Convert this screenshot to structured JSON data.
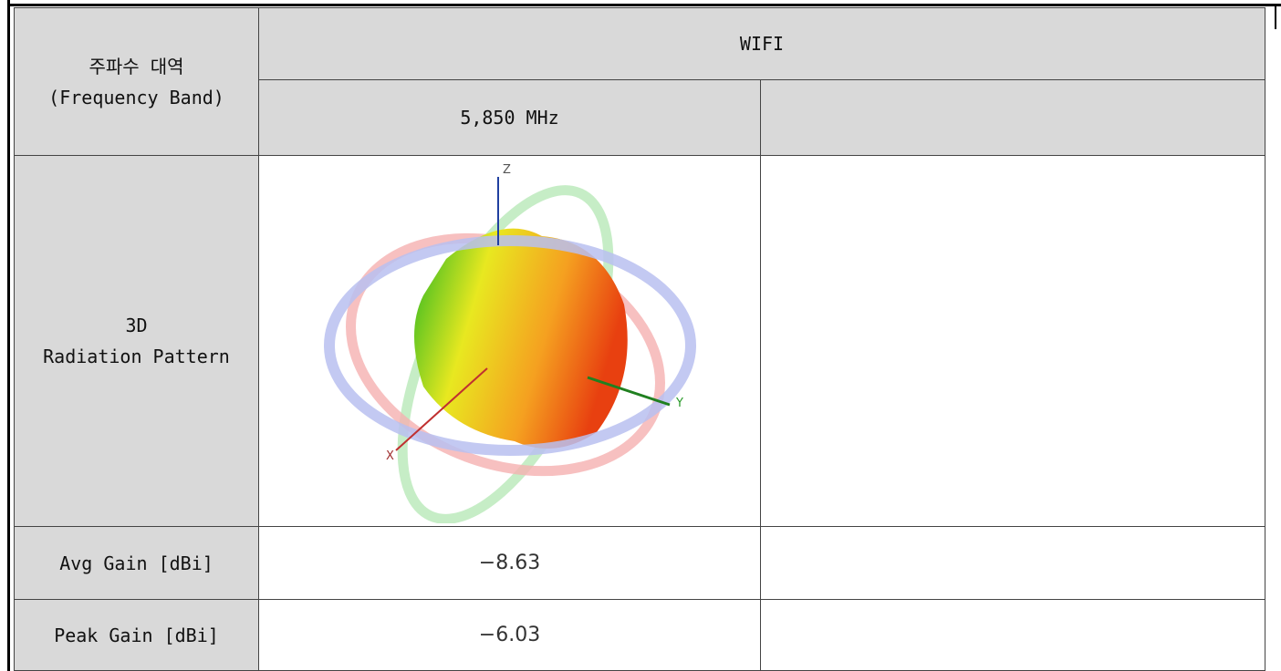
{
  "header": {
    "band_label": [
      "주파수 대역",
      "(Frequency Band)"
    ],
    "band": "WIFI",
    "frequency": "5,850 MHz"
  },
  "rows": [
    {
      "label": [
        "3D",
        "Radiation Pattern"
      ],
      "image": {
        "axis_labels": [
          "Z",
          "Y",
          "X"
        ]
      }
    },
    {
      "label": "Avg Gain [dBi]",
      "value": "−8.63"
    },
    {
      "label": "Peak Gain [dBi]",
      "value": "−6.03"
    }
  ]
}
